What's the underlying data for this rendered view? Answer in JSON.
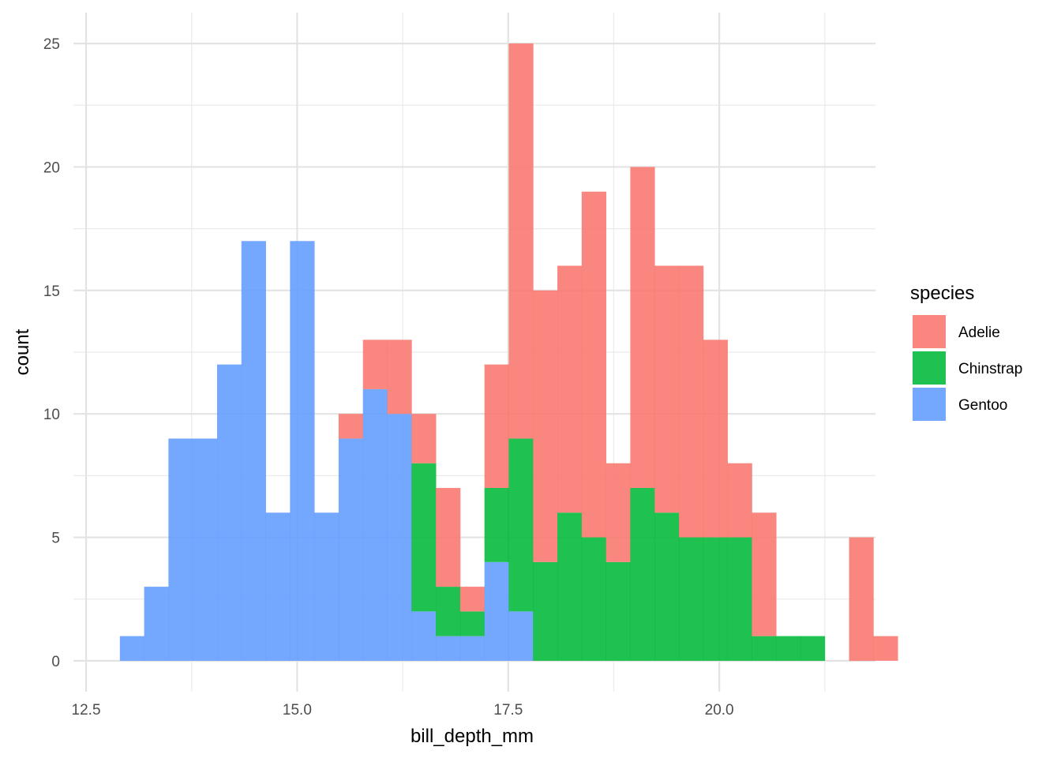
{
  "chart_data": {
    "type": "bar",
    "subtype": "stacked-histogram",
    "title": "",
    "xlabel": "bill_depth_mm",
    "ylabel": "count",
    "xlim": [
      12.35,
      21.85
    ],
    "ylim": [
      -1.25,
      26.25
    ],
    "grid": true,
    "legend_position": "right",
    "legend_title": "species",
    "bin_width": 0.2879,
    "bin_start": 12.9,
    "x_ticks": [
      12.5,
      15.0,
      17.5,
      20.0
    ],
    "x_tick_labels": [
      "12.5",
      "15.0",
      "17.5",
      "20.0"
    ],
    "y_ticks": [
      0,
      5,
      10,
      15,
      20,
      25
    ],
    "y_tick_labels": [
      "0",
      "5",
      "10",
      "15",
      "20",
      "25"
    ],
    "series": [
      {
        "name": "Adelie",
        "color": "#F8766D",
        "values": [
          0,
          0,
          0,
          0,
          0,
          0,
          0,
          0,
          0,
          1,
          2,
          3,
          2,
          4,
          1,
          5,
          16,
          11,
          10,
          14,
          4,
          13,
          10,
          11,
          8,
          3,
          5,
          0,
          0,
          0,
          5,
          1
        ]
      },
      {
        "name": "Chinstrap",
        "color": "#00BA38",
        "values": [
          0,
          0,
          0,
          0,
          0,
          0,
          0,
          0,
          0,
          0,
          0,
          0,
          6,
          2,
          1,
          3,
          7,
          4,
          6,
          5,
          4,
          7,
          6,
          5,
          5,
          5,
          1,
          1,
          1,
          0,
          0,
          0
        ]
      },
      {
        "name": "Gentoo",
        "color": "#619CFF",
        "values": [
          1,
          3,
          9,
          9,
          12,
          17,
          6,
          17,
          6,
          9,
          11,
          10,
          2,
          1,
          1,
          4,
          2,
          0,
          0,
          0,
          0,
          0,
          0,
          0,
          0,
          0,
          0,
          0,
          0,
          0,
          0,
          0
        ]
      }
    ]
  }
}
